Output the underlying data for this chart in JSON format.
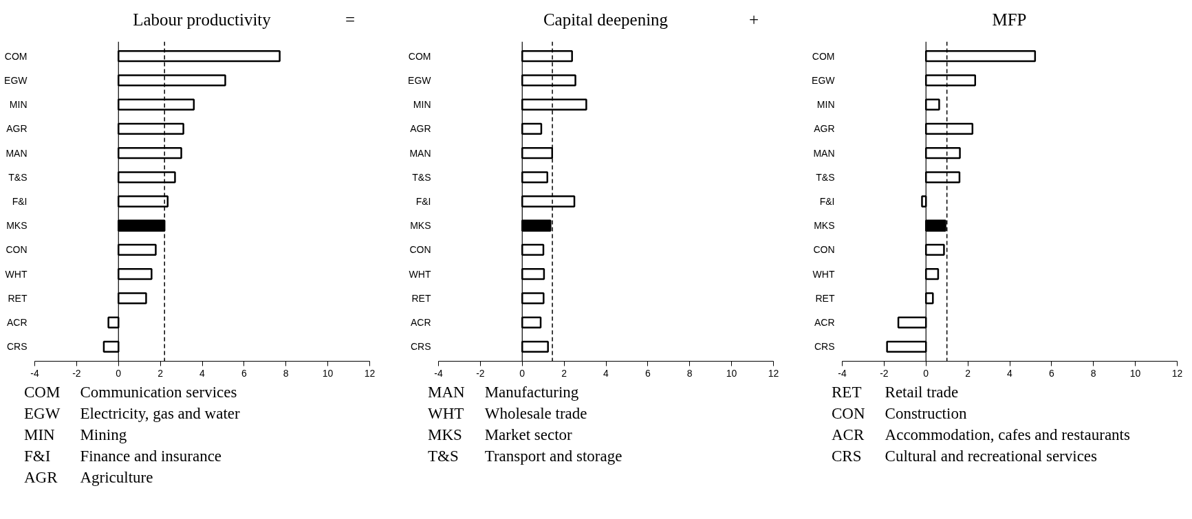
{
  "chart_data": [
    {
      "type": "bar",
      "orientation": "horizontal",
      "title": "Labour productivity",
      "categories": [
        "COM",
        "EGW",
        "MIN",
        "AGR",
        "MAN",
        "T&S",
        "F&I",
        "MKS",
        "CON",
        "WHT",
        "RET",
        "ACR",
        "CRS"
      ],
      "values": [
        7.7,
        5.1,
        3.6,
        3.1,
        3.0,
        2.7,
        2.35,
        2.2,
        1.78,
        1.58,
        1.32,
        -0.48,
        -0.7
      ],
      "colors": [
        "#ffffff",
        "#ffffff",
        "#ffffff",
        "#ffffff",
        "#ffffff",
        "#ffffff",
        "#ffffff",
        "#000000",
        "#ffffff",
        "#ffffff",
        "#ffffff",
        "#ffffff",
        "#ffffff"
      ],
      "xlim": [
        -4,
        12
      ],
      "xticks": [
        -4,
        -2,
        0,
        2,
        4,
        6,
        8,
        10,
        12
      ],
      "ref_lines": [
        {
          "axis": "x",
          "value": 2.2,
          "line_style": "dashed",
          "color": "#000000"
        }
      ],
      "annotations": [
        "=",
        "COM\tCommunication services",
        "EGW\tElectricity, gas and water",
        "MIN\tMining",
        "F&I\tFinance and insurance",
        "AGR\tAgriculture"
      ]
    },
    {
      "type": "bar",
      "orientation": "horizontal",
      "title": "Capital deepening",
      "categories": [
        "COM",
        "EGW",
        "MIN",
        "AGR",
        "MAN",
        "T&S",
        "F&I",
        "MKS",
        "CON",
        "WHT",
        "RET",
        "ACR",
        "CRS"
      ],
      "values": [
        2.38,
        2.54,
        3.06,
        0.91,
        1.43,
        1.2,
        2.49,
        1.35,
        1.01,
        1.04,
        1.02,
        0.88,
        1.23
      ],
      "colors": [
        "#ffffff",
        "#ffffff",
        "#ffffff",
        "#ffffff",
        "#ffffff",
        "#ffffff",
        "#ffffff",
        "#000000",
        "#ffffff",
        "#ffffff",
        "#ffffff",
        "#ffffff",
        "#ffffff"
      ],
      "xlim": [
        -4,
        12
      ],
      "xticks": [
        -4,
        -2,
        0,
        2,
        4,
        6,
        8,
        10,
        12
      ],
      "ref_lines": [
        {
          "axis": "x",
          "value": 1.44,
          "line_style": "dashed",
          "color": "#000000"
        }
      ],
      "annotations": [
        "+",
        "MAN\tManufacturing",
        "WHT\tWholesale trade",
        "MKS\tMarket sector",
        "T&S\tTransport and storage"
      ]
    },
    {
      "type": "bar",
      "orientation": "horizontal",
      "title": "MFP",
      "categories": [
        "COM",
        "EGW",
        "MIN",
        "AGR",
        "MAN",
        "T&S",
        "F&I",
        "MKS",
        "CON",
        "WHT",
        "RET",
        "ACR",
        "CRS"
      ],
      "values": [
        5.21,
        2.35,
        0.63,
        2.22,
        1.62,
        1.6,
        -0.19,
        0.93,
        0.86,
        0.58,
        0.33,
        -1.32,
        -1.86
      ],
      "colors": [
        "#ffffff",
        "#ffffff",
        "#ffffff",
        "#ffffff",
        "#ffffff",
        "#ffffff",
        "#ffffff",
        "#000000",
        "#ffffff",
        "#ffffff",
        "#ffffff",
        "#ffffff",
        "#ffffff"
      ],
      "xlim": [
        -4,
        12
      ],
      "xticks": [
        -4,
        -2,
        0,
        2,
        4,
        6,
        8,
        10,
        12
      ],
      "ref_lines": [
        {
          "axis": "x",
          "value": 1.0,
          "line_style": "dashed",
          "color": "#000000"
        }
      ],
      "annotations": [
        "RET\tRetail trade",
        "CON\tConstruction",
        "ACR\tAccommodation, cafes and restaurants",
        "CRS\tCultural and recreational services"
      ]
    }
  ]
}
